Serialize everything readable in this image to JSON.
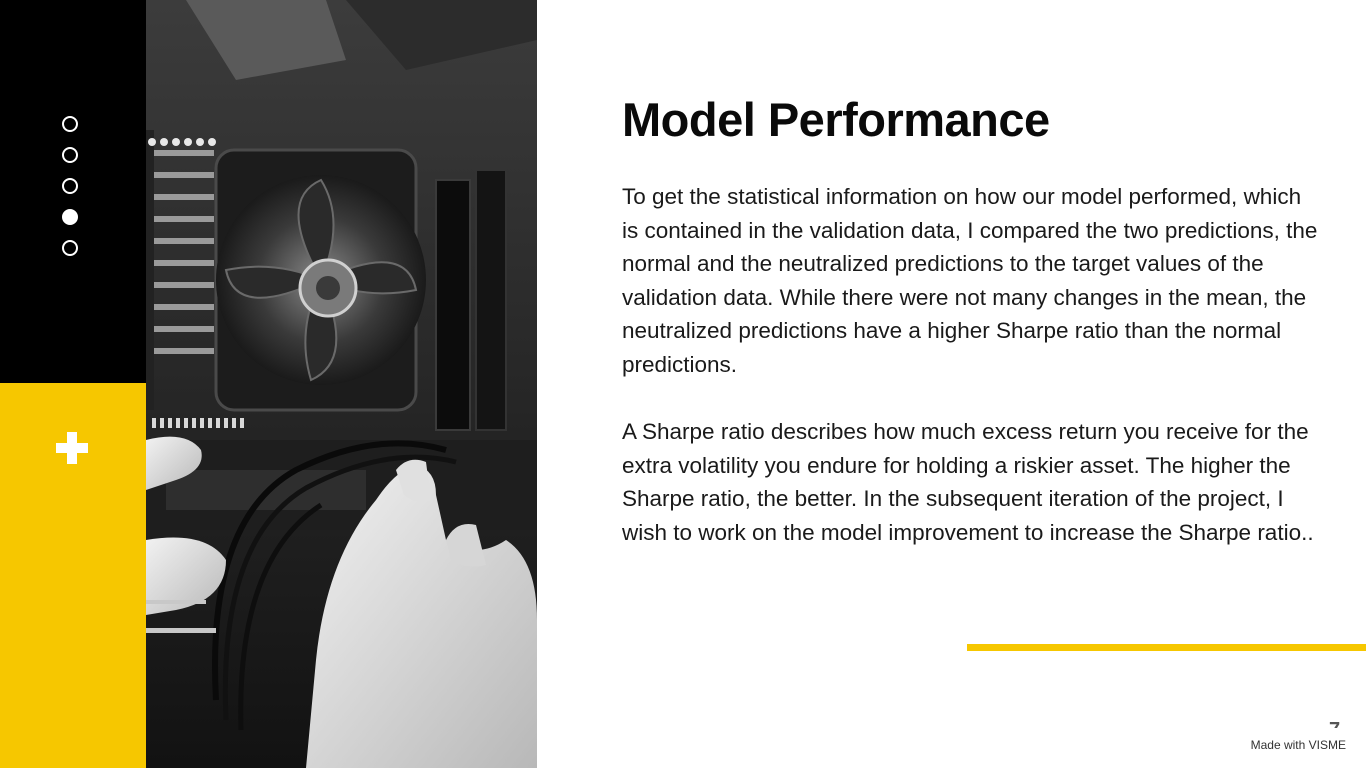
{
  "colors": {
    "accent": "#f6c700",
    "dark": "#000000",
    "text": "#1a1a1a"
  },
  "sidebar": {
    "nav_dots": [
      {
        "name": "slide-1",
        "active": false
      },
      {
        "name": "slide-2",
        "active": false
      },
      {
        "name": "slide-3",
        "active": false
      },
      {
        "name": "slide-4",
        "active": true
      },
      {
        "name": "slide-5",
        "active": false
      }
    ],
    "plus_icon": "plus-icon"
  },
  "image": {
    "subject": "hands installing cables inside a computer case with a CPU cooler fan"
  },
  "slide": {
    "title": "Model Performance",
    "paragraphs": [
      "To get the statistical information on how our model performed, which is contained in the validation data, I compared the two predictions, the normal and the neutralized predictions to the target values of the validation data. While there were not many changes in the mean, the neutralized predictions have a higher Sharpe ratio than the normal predictions.",
      "A Sharpe ratio describes how much excess return you receive for the extra volatility you endure for holding a riskier asset. The higher the Sharpe ratio, the better. In the subsequent iteration of the project, I wish to work on the model improvement to increase the Sharpe ratio.."
    ]
  },
  "footer": {
    "page_number": "7",
    "credit": "Made with VISME"
  }
}
